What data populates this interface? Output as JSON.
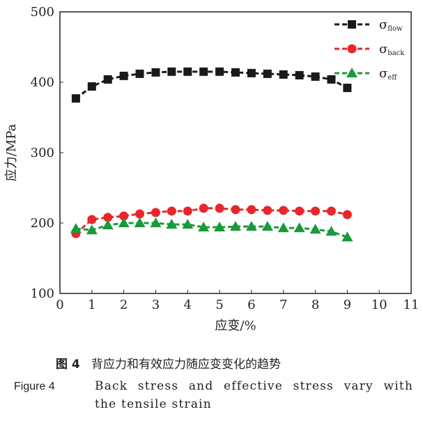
{
  "chart_data": {
    "type": "line",
    "xlabel": "应变/%",
    "ylabel": "应力/MPa",
    "xlim": [
      0,
      11
    ],
    "ylim": [
      100,
      500
    ],
    "xticks": [
      0,
      1,
      2,
      3,
      4,
      5,
      6,
      7,
      8,
      9,
      10,
      11
    ],
    "yticks": [
      100,
      200,
      300,
      400,
      500
    ],
    "x": [
      0.5,
      1,
      1.5,
      2,
      2.5,
      3,
      3.5,
      4,
      4.5,
      5,
      5.5,
      6,
      6.5,
      7,
      7.5,
      8,
      8.5,
      9
    ],
    "legend_position": "top-right",
    "grid": false,
    "series": [
      {
        "name": "σ",
        "sub": "flow",
        "color": "#1a1a1a",
        "marker": "square",
        "values": [
          377,
          394,
          404,
          409,
          412,
          414,
          415,
          415,
          415,
          415,
          414,
          413,
          412,
          411,
          410,
          408,
          404,
          392
        ]
      },
      {
        "name": "σ",
        "sub": "back",
        "color": "#e8262b",
        "marker": "circle",
        "values": [
          185,
          205,
          208,
          210,
          213,
          215,
          217,
          217,
          221,
          221,
          219,
          219,
          218,
          218,
          217,
          217,
          217,
          212
        ]
      },
      {
        "name": "σ",
        "sub": "eff",
        "color": "#1a9a3a",
        "marker": "triangle",
        "values": [
          192,
          190,
          197,
          200,
          200,
          200,
          198,
          198,
          194,
          194,
          195,
          195,
          195,
          193,
          193,
          191,
          188,
          180
        ]
      }
    ]
  },
  "caption": {
    "cn_label": "图 4",
    "cn_text": "背应力和有效应力随应变变化的趋势",
    "en_label": "Figure 4",
    "en_text_1": "Back stress and effective stress vary with",
    "en_text_2": "the tensile strain"
  }
}
